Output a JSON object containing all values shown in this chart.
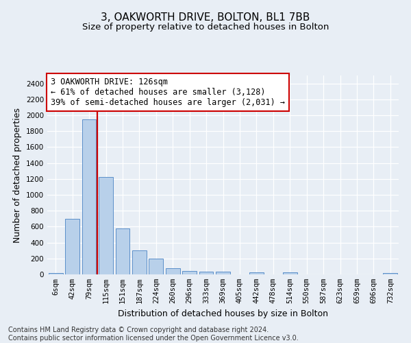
{
  "title": "3, OAKWORTH DRIVE, BOLTON, BL1 7BB",
  "subtitle": "Size of property relative to detached houses in Bolton",
  "xlabel": "Distribution of detached houses by size in Bolton",
  "ylabel": "Number of detached properties",
  "bar_labels": [
    "6sqm",
    "42sqm",
    "79sqm",
    "115sqm",
    "151sqm",
    "187sqm",
    "224sqm",
    "260sqm",
    "296sqm",
    "333sqm",
    "369sqm",
    "405sqm",
    "442sqm",
    "478sqm",
    "514sqm",
    "550sqm",
    "587sqm",
    "623sqm",
    "659sqm",
    "696sqm",
    "732sqm"
  ],
  "bar_values": [
    18,
    700,
    1950,
    1220,
    580,
    305,
    200,
    80,
    45,
    38,
    38,
    0,
    30,
    0,
    25,
    0,
    0,
    0,
    0,
    0,
    18
  ],
  "bar_color": "#b8d0ea",
  "bar_edge_color": "#5b8fc9",
  "red_line_x": 2.5,
  "red_line_color": "#cc0000",
  "annotation_text": "3 OAKWORTH DRIVE: 126sqm\n← 61% of detached houses are smaller (3,128)\n39% of semi-detached houses are larger (2,031) →",
  "annotation_box_color": "#ffffff",
  "annotation_box_edge": "#cc0000",
  "ylim": [
    0,
    2500
  ],
  "yticks": [
    0,
    200,
    400,
    600,
    800,
    1000,
    1200,
    1400,
    1600,
    1800,
    2000,
    2200,
    2400
  ],
  "footer_text": "Contains HM Land Registry data © Crown copyright and database right 2024.\nContains public sector information licensed under the Open Government Licence v3.0.",
  "bg_color": "#e8eef5",
  "plot_bg_color": "#e8eef5",
  "grid_color": "#ffffff",
  "title_fontsize": 11,
  "subtitle_fontsize": 9.5,
  "axis_label_fontsize": 9,
  "tick_fontsize": 7.5,
  "annotation_fontsize": 8.5,
  "footer_fontsize": 7
}
